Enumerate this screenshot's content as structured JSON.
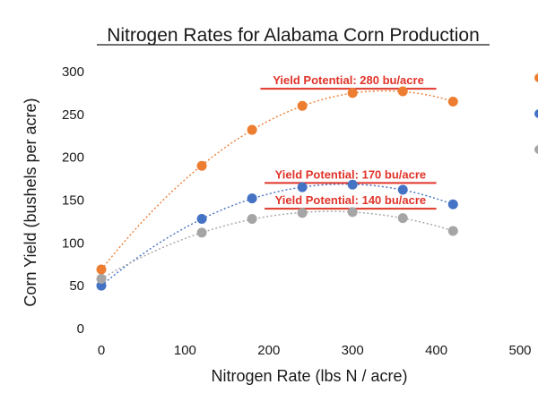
{
  "chart_data": {
    "type": "scatter",
    "title": "Nitrogen Rates for Alabama Corn Production",
    "xlabel": "Nitrogen Rate (lbs N / acre)",
    "ylabel": "Corn Yield (bushels per acre)",
    "xlim": [
      0,
      500
    ],
    "ylim": [
      0,
      300
    ],
    "x_ticks": [
      0,
      100,
      200,
      300,
      400,
      500
    ],
    "y_ticks": [
      0,
      50,
      100,
      150,
      200,
      250,
      300
    ],
    "grid": false,
    "legend": "right (cut off)",
    "series": [
      {
        "color": "#ed7d31",
        "trendline": "polynomial",
        "x": [
          0,
          120,
          180,
          240,
          300,
          360,
          420
        ],
        "y": [
          69,
          190,
          232,
          260,
          275,
          277,
          265
        ]
      },
      {
        "color": "#4472c4",
        "trendline": "polynomial",
        "x": [
          0,
          120,
          180,
          240,
          300,
          360,
          420
        ],
        "y": [
          50,
          128,
          152,
          165,
          168,
          162,
          145
        ]
      },
      {
        "color": "#a5a5a5",
        "trendline": "polynomial",
        "x": [
          0,
          120,
          180,
          240,
          300,
          360,
          420
        ],
        "y": [
          58,
          112,
          128,
          135,
          136,
          129,
          114
        ]
      }
    ],
    "annotations": [
      {
        "text": "Yield Potential: 280 bu/acre",
        "y": 280,
        "x_start": 190,
        "x_end": 400,
        "color": "#e0342a"
      },
      {
        "text": "Yield Potential: 170 bu/acre",
        "y": 170,
        "x_start": 195,
        "x_end": 400,
        "color": "#e0342a"
      },
      {
        "text": "Yield Potential: 140 bu/acre",
        "y": 140,
        "x_start": 195,
        "x_end": 400,
        "color": "#e0342a"
      }
    ]
  }
}
